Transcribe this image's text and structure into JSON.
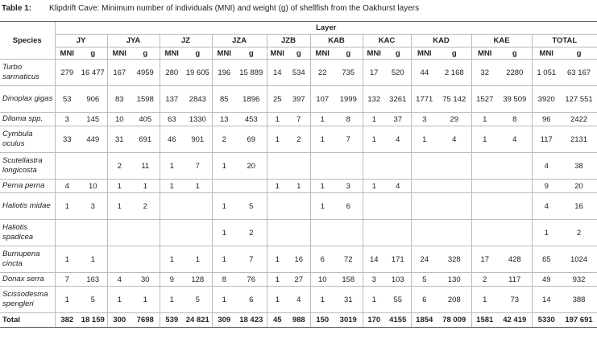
{
  "caption": {
    "label": "Table 1:",
    "text": "Klipdrift Cave: Minimum number of individuals (MNI) and weight (g) of shellfish from the Oakhurst layers"
  },
  "table": {
    "species_header": "Species",
    "layer_header": "Layer",
    "layers": [
      "JY",
      "JYA",
      "JZ",
      "JZA",
      "JZB",
      "KAB",
      "KAC",
      "KAD",
      "KAE",
      "TOTAL"
    ],
    "subheaders": [
      "MNI",
      "g"
    ],
    "rows": [
      {
        "species": "Turbo sarmaticus",
        "cells": [
          "279",
          "16 477",
          "167",
          "4959",
          "280",
          "19 605",
          "196",
          "15 889",
          "14",
          "534",
          "22",
          "735",
          "17",
          "520",
          "44",
          "2 168",
          "32",
          "2280",
          "1 051",
          "63 167"
        ]
      },
      {
        "species": "Dinoplax gigas",
        "cells": [
          "53",
          "906",
          "83",
          "1598",
          "137",
          "2843",
          "85",
          "1896",
          "25",
          "397",
          "107",
          "1999",
          "132",
          "3261",
          "1771",
          "75 142",
          "1527",
          "39 509",
          "3920",
          "127 551"
        ]
      },
      {
        "species": "Diloma spp.",
        "cells": [
          "3",
          "145",
          "10",
          "405",
          "63",
          "1330",
          "13",
          "453",
          "1",
          "7",
          "1",
          "8",
          "1",
          "37",
          "3",
          "29",
          "1",
          "8",
          "96",
          "2422"
        ]
      },
      {
        "species": "Cymbula oculus",
        "cells": [
          "33",
          "449",
          "31",
          "691",
          "46",
          "901",
          "2",
          "69",
          "1",
          "2",
          "1",
          "7",
          "1",
          "4",
          "1",
          "4",
          "1",
          "4",
          "117",
          "2131"
        ]
      },
      {
        "species": "Scutellastra longicosta",
        "cells": [
          null,
          null,
          "2",
          "11",
          "1",
          "7",
          "1",
          "20",
          null,
          null,
          null,
          null,
          null,
          null,
          null,
          null,
          null,
          null,
          "4",
          "38"
        ]
      },
      {
        "species": "Perna perna",
        "cells": [
          "4",
          "10",
          "1",
          "1",
          "1",
          "1",
          null,
          null,
          "1",
          "1",
          "1",
          "3",
          "1",
          "4",
          null,
          null,
          null,
          null,
          "9",
          "20"
        ]
      },
      {
        "species": "Haliotis midae",
        "cells": [
          "1",
          "3",
          "1",
          "2",
          null,
          null,
          "1",
          "5",
          null,
          null,
          "1",
          "6",
          null,
          null,
          null,
          null,
          null,
          null,
          "4",
          "16"
        ]
      },
      {
        "species": "Haliotis spadicea",
        "cells": [
          null,
          null,
          null,
          null,
          null,
          null,
          "1",
          "2",
          null,
          null,
          null,
          null,
          null,
          null,
          null,
          null,
          null,
          null,
          "1",
          "2"
        ]
      },
      {
        "species": "Burnupena cincta",
        "cells": [
          "1",
          "1",
          null,
          null,
          "1",
          "1",
          "1",
          "7",
          "1",
          "16",
          "6",
          "72",
          "14",
          "171",
          "24",
          "328",
          "17",
          "428",
          "65",
          "1024"
        ]
      },
      {
        "species": "Donax serra",
        "cells": [
          "7",
          "163",
          "4",
          "30",
          "9",
          "128",
          "8",
          "76",
          "1",
          "27",
          "10",
          "158",
          "3",
          "103",
          "5",
          "130",
          "2",
          "117",
          "49",
          "932"
        ]
      },
      {
        "species": "Scissodesma spengleri",
        "cells": [
          "1",
          "5",
          "1",
          "1",
          "1",
          "5",
          "1",
          "6",
          "1",
          "4",
          "1",
          "31",
          "1",
          "55",
          "6",
          "208",
          "1",
          "73",
          "14",
          "388"
        ]
      }
    ],
    "total": {
      "label": "Total",
      "cells": [
        "382",
        "18 159",
        "300",
        "7698",
        "539",
        "24 821",
        "309",
        "18 423",
        "45",
        "988",
        "150",
        "3019",
        "170",
        "4155",
        "1854",
        "78 009",
        "1581",
        "42 419",
        "5330",
        "197 691"
      ]
    }
  }
}
